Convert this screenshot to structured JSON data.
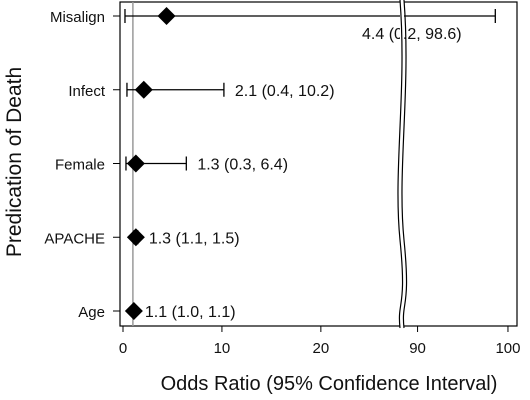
{
  "chart_data": {
    "type": "forest",
    "ylabel": "Predication of Death",
    "xlabel": "Odds Ratio (95% Confidence Interval)",
    "xaxis": {
      "segments": [
        {
          "range": [
            0,
            28
          ],
          "ticks": [
            0,
            10,
            20
          ]
        },
        {
          "range": [
            88.5,
            101
          ],
          "ticks": [
            90,
            100
          ]
        }
      ],
      "break": true
    },
    "reference_line": 1,
    "rows": [
      {
        "category": "Misalign",
        "or": 4.4,
        "ci_low": 0.2,
        "ci_high": 98.6,
        "label": "4.4 (0.2, 98.6)"
      },
      {
        "category": "Infect",
        "or": 2.1,
        "ci_low": 0.4,
        "ci_high": 10.2,
        "label": "2.1 (0.4, 10.2)"
      },
      {
        "category": "Female",
        "or": 1.3,
        "ci_low": 0.3,
        "ci_high": 6.4,
        "label": "1.3 (0.3, 6.4)"
      },
      {
        "category": "APACHE",
        "or": 1.3,
        "ci_low": 1.1,
        "ci_high": 1.5,
        "label": "1.3 (1.1, 1.5)"
      },
      {
        "category": "Age",
        "or": 1.1,
        "ci_low": 1.0,
        "ci_high": 1.1,
        "label": "1.1 (1.0, 1.1)"
      }
    ],
    "grid": false,
    "marker": "diamond",
    "colors": {
      "marker": "#000000",
      "line": "#000000",
      "reference": "#999999"
    }
  }
}
